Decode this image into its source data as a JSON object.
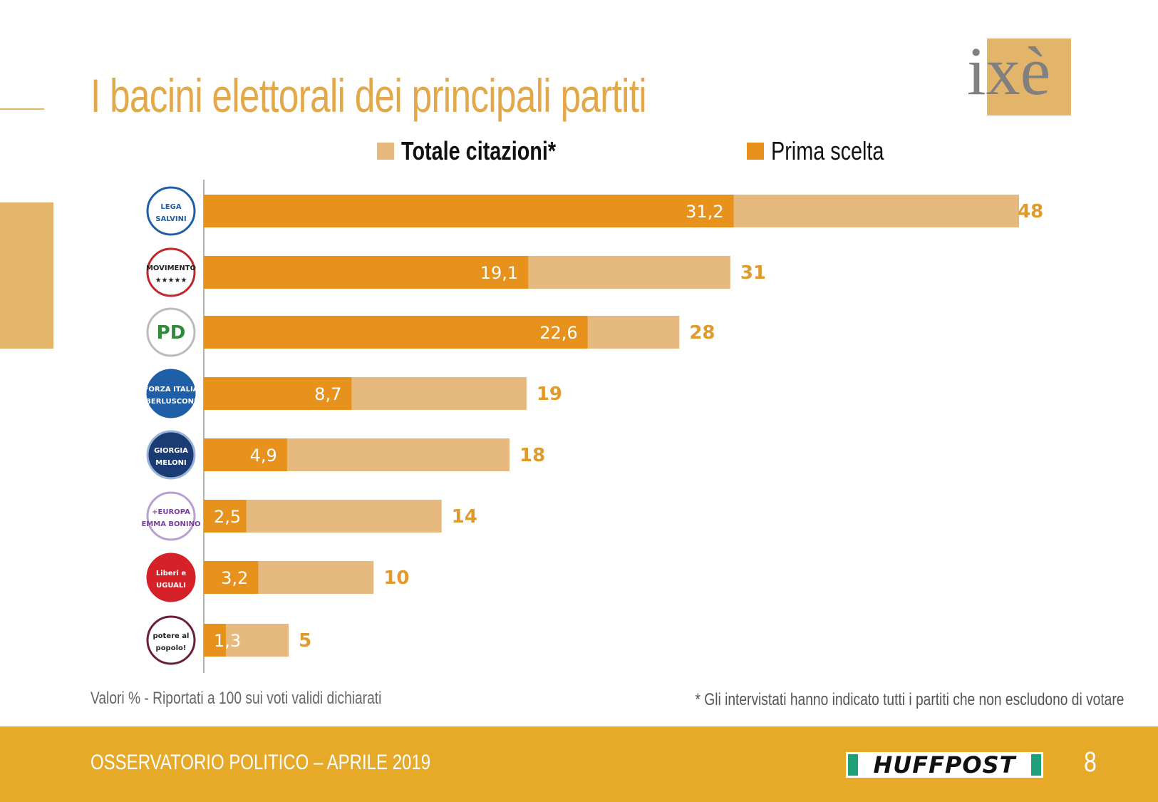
{
  "page": {
    "title": "I bacini elettorali dei principali partiti",
    "brand_logo": "ixè",
    "footnote_left": "Valori % - Riportati a 100 sui voti validi dichiarati",
    "footnote_right": "* Gli intervistati hanno indicato tutti i partiti che non escludono di votare",
    "footer_text": "OSSERVATORIO POLITICO – APRILE 2019",
    "footer_brand": "HUFFPOST",
    "page_number": "8"
  },
  "colors": {
    "accent": "#e3a84a",
    "prima_scelta": "#e8921e",
    "totale_citazioni": "#e6b97e",
    "footer": "#e6a928"
  },
  "chart_data": {
    "type": "bar",
    "orientation": "horizontal",
    "legend": [
      "Totale citazioni*",
      "Prima scelta"
    ],
    "legend_placement": "top",
    "categories": [
      "Lega Salvini Premier",
      "MoVimento 5 Stelle",
      "Partito Democratico",
      "Forza Italia Berlusconi Presidente",
      "Giorgia Meloni Fratelli d'Italia",
      "+Europa con Emma Bonino",
      "Liberi e Uguali con Pietro Grasso",
      "Potere al Popolo!"
    ],
    "series": [
      {
        "name": "Totale citazioni*",
        "values": [
          48,
          31,
          28,
          19,
          18,
          14,
          10,
          5
        ]
      },
      {
        "name": "Prima scelta",
        "values": [
          31.2,
          19.1,
          22.6,
          8.7,
          4.9,
          2.5,
          3.2,
          1.3
        ]
      }
    ],
    "total_labels": [
      "48",
      "31",
      "28",
      "19",
      "18",
      "14",
      "10",
      "5"
    ],
    "prima_labels": [
      "31,2",
      "19,1",
      "22,6",
      "8,7",
      "4,9",
      "2,5",
      "3,2",
      "1,3"
    ],
    "logos": [
      {
        "icon": "lega-logo",
        "lines": [
          "LEGA",
          "SALVINI"
        ]
      },
      {
        "icon": "m5s-logo",
        "lines": [
          "MOVIMENTO",
          "★★★★★"
        ]
      },
      {
        "icon": "pd-logo",
        "lines": [
          "PD"
        ]
      },
      {
        "icon": "forza-italia-logo",
        "lines": [
          "FORZA ITALIA",
          "BERLUSCONI"
        ]
      },
      {
        "icon": "fdi-logo",
        "lines": [
          "GIORGIA",
          "MELONI"
        ]
      },
      {
        "icon": "piu-europa-logo",
        "lines": [
          "+EUROPA",
          "EMMA BONINO"
        ]
      },
      {
        "icon": "leu-logo",
        "lines": [
          "Liberi e",
          "UGUALI"
        ]
      },
      {
        "icon": "pap-logo",
        "lines": [
          "potere al",
          "popolo!"
        ]
      }
    ],
    "xlim": [
      0,
      48
    ],
    "grid": false
  }
}
